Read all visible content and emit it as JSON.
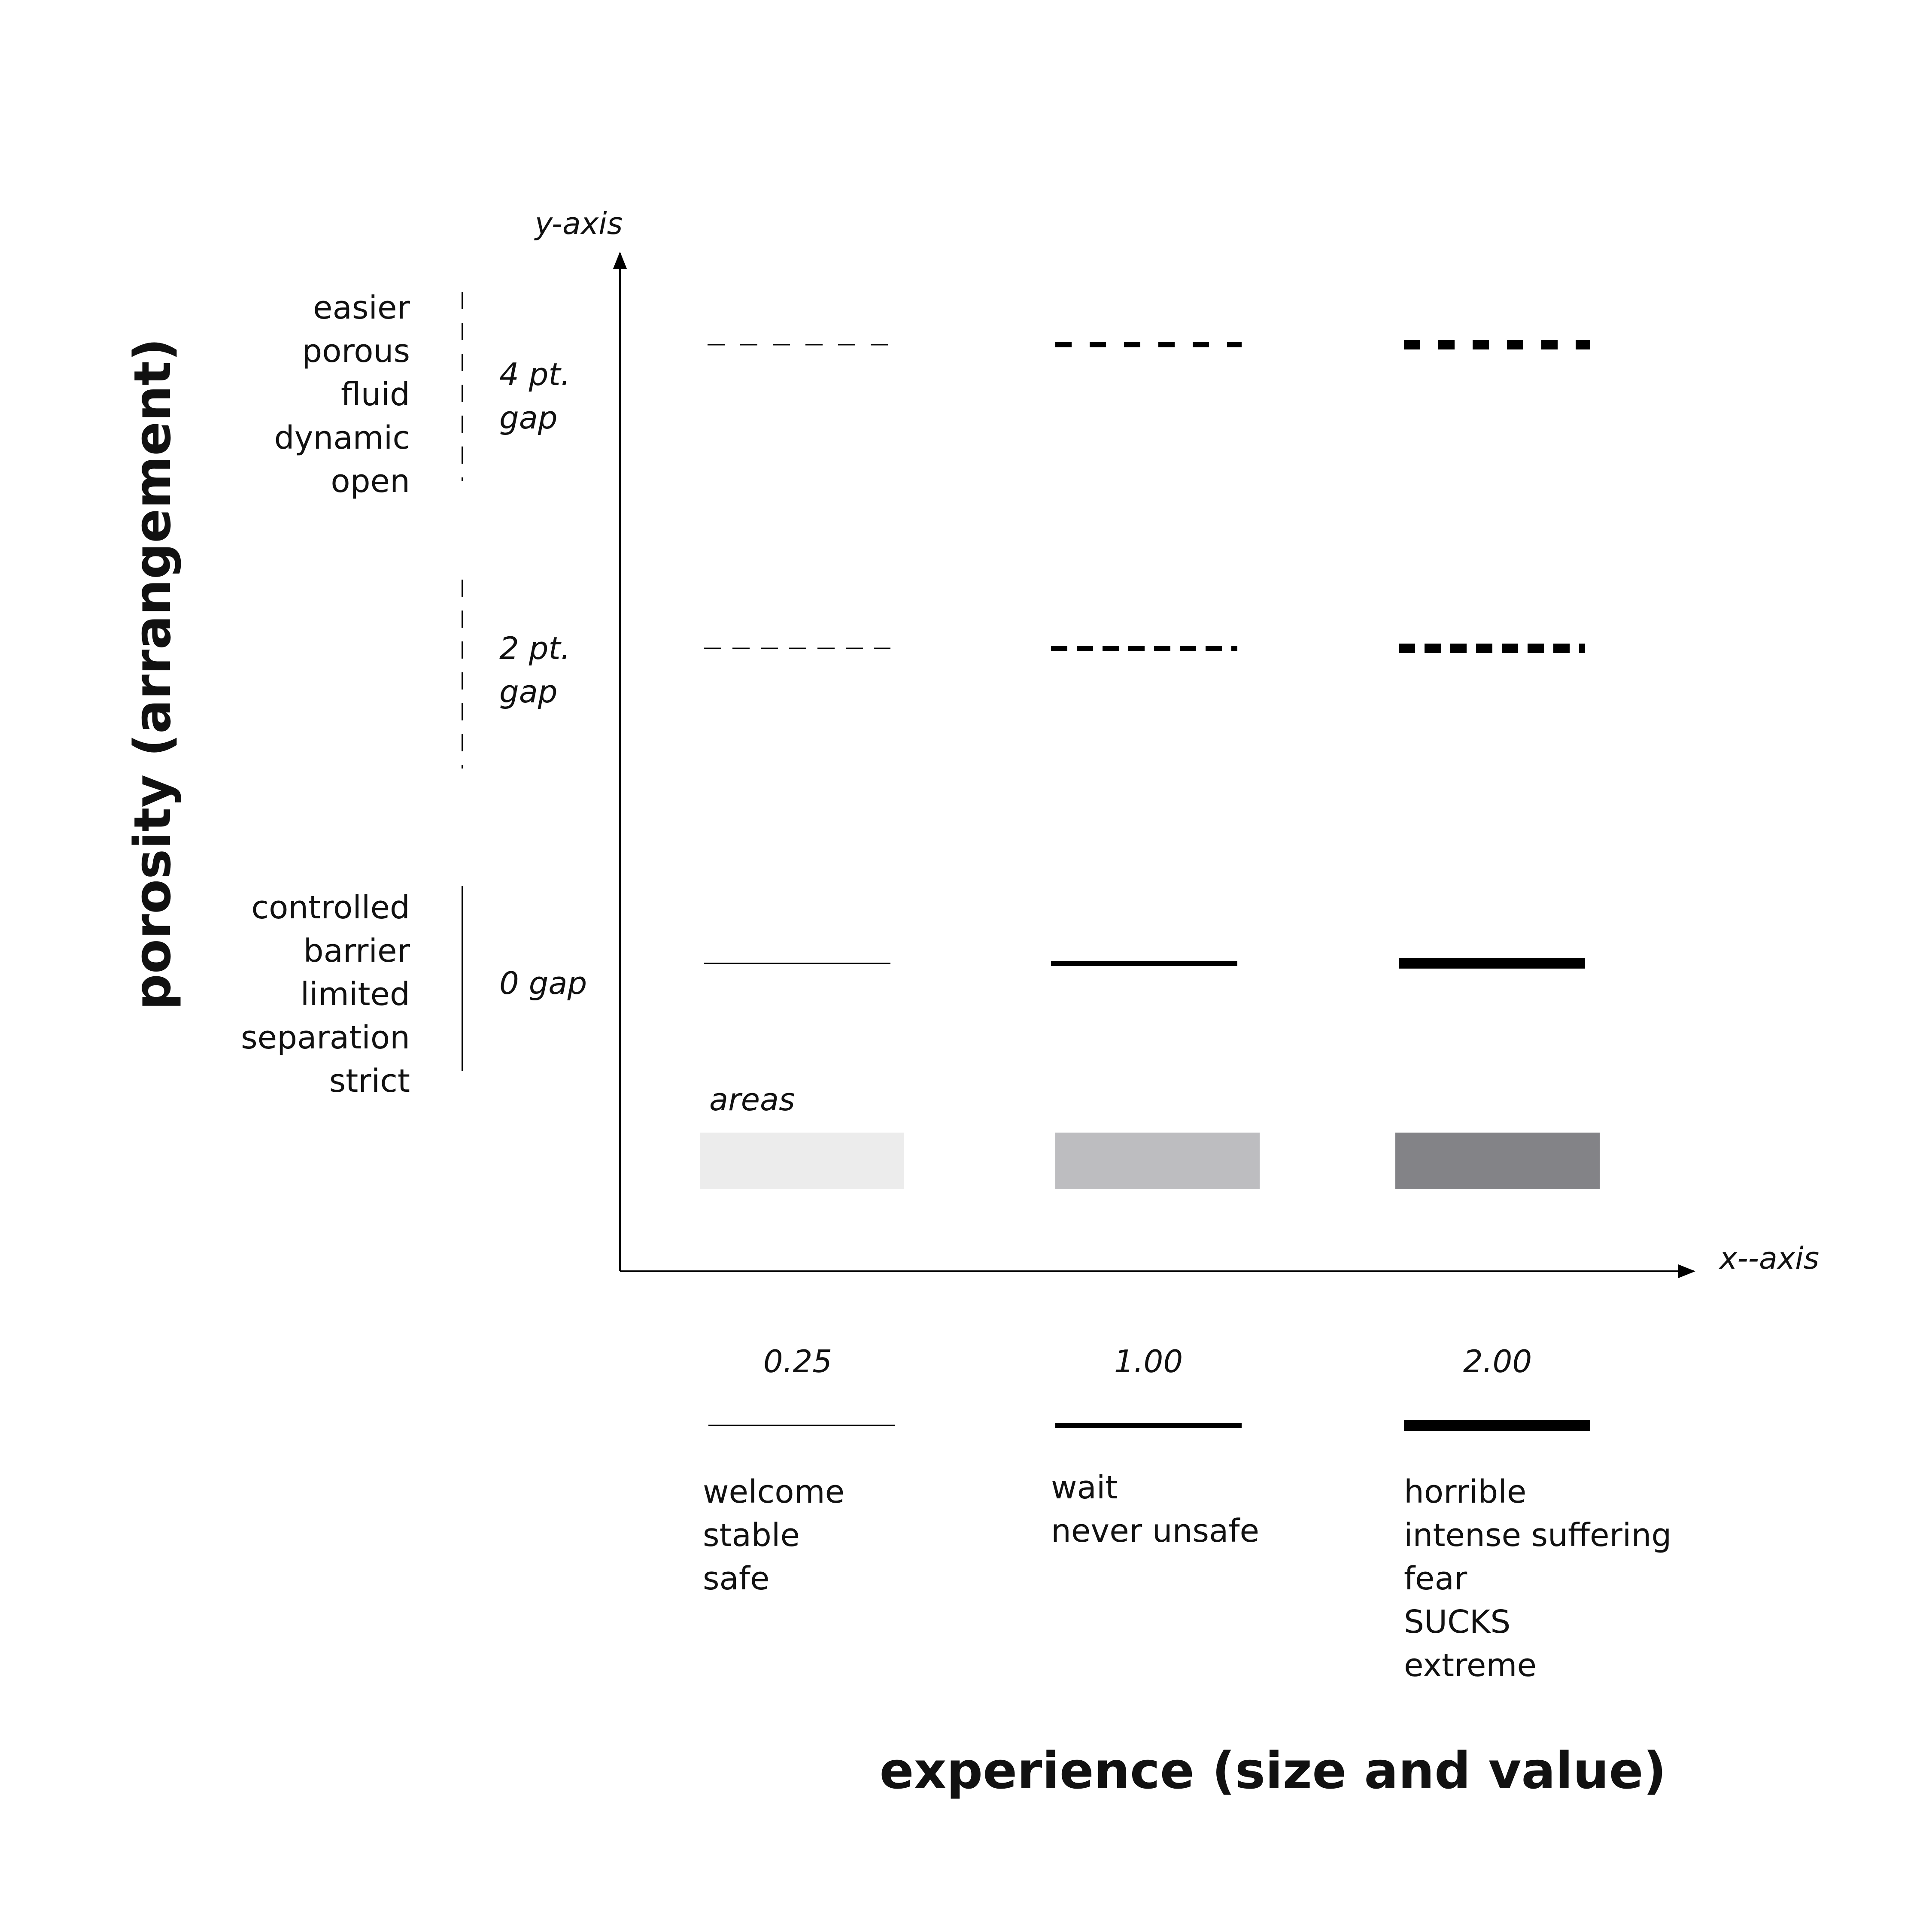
{
  "axes": {
    "y_label": "y-axis",
    "x_label": "x--axis"
  },
  "titles": {
    "y_title": "porosity (arrangement)",
    "x_title": "experience (size and value)"
  },
  "porosity_groups": [
    {
      "id": "open",
      "words": [
        "easier",
        "porous",
        "fluid",
        "dynamic",
        "open"
      ],
      "gap_lines": [
        "4 pt.",
        "gap"
      ],
      "bracket": "dashed"
    },
    {
      "id": "mid",
      "words": [],
      "gap_lines": [
        "2 pt.",
        "gap"
      ],
      "bracket": "dashed"
    },
    {
      "id": "closed",
      "words": [
        "controlled",
        "barrier",
        "limited",
        "separation",
        "strict"
      ],
      "gap_lines": [
        "0 gap"
      ],
      "bracket": "solid"
    }
  ],
  "areas_label": "areas",
  "area_colors": [
    "#ececec",
    "#bdbdc0",
    "#838387"
  ],
  "experience_columns": [
    {
      "value": "0.25",
      "words": [
        "welcome",
        "stable",
        "safe"
      ]
    },
    {
      "value": "1.00",
      "words": [
        "wait",
        "never unsafe"
      ]
    },
    {
      "value": "2.00",
      "words": [
        "horrible",
        "intense suffering",
        "fear",
        "SUCKS",
        "extreme"
      ]
    }
  ],
  "line_color": "#000000"
}
